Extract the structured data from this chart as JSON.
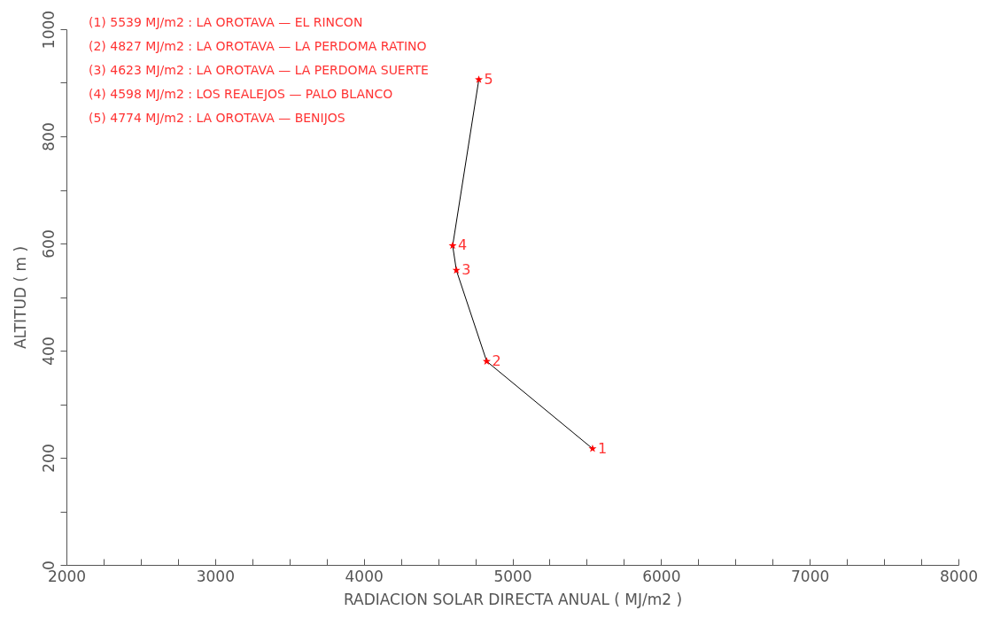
{
  "chart_data": {
    "type": "line",
    "xlabel": "RADIACION SOLAR DIRECTA ANUAL ( MJ/m2 )",
    "ylabel": "ALTITUD ( m )",
    "x": [
      5539,
      4827,
      4623,
      4598,
      4774
    ],
    "series": [
      {
        "color": "#000000",
        "marker": "none",
        "values": [
          217,
          380,
          550,
          596,
          906
        ]
      },
      {
        "type": "scatter",
        "color": "#ff0000",
        "marker": "star",
        "values": [
          217,
          380,
          550,
          596,
          906
        ]
      }
    ],
    "xlim": [
      2000,
      8000
    ],
    "xticks": [
      2000,
      {
        "value": 2250,
        "label": null
      },
      {
        "value": 2500,
        "label": null
      },
      {
        "value": 2750,
        "label": null
      },
      3000,
      {
        "value": 3250,
        "label": null
      },
      {
        "value": 3500,
        "label": null
      },
      {
        "value": 3750,
        "label": null
      },
      4000,
      {
        "value": 4250,
        "label": null
      },
      {
        "value": 4500,
        "label": null
      },
      {
        "value": 4750,
        "label": null
      },
      5000,
      {
        "value": 5250,
        "label": null
      },
      {
        "value": 5500,
        "label": null
      },
      {
        "value": 5750,
        "label": null
      },
      6000,
      {
        "value": 6250,
        "label": null
      },
      {
        "value": 6500,
        "label": null
      },
      {
        "value": 6750,
        "label": null
      },
      7000,
      {
        "value": 7250,
        "label": null
      },
      {
        "value": 7500,
        "label": null
      },
      {
        "value": 7750,
        "label": null
      },
      8000
    ],
    "ylim": [
      0,
      1000
    ],
    "yticks": [
      0,
      {
        "value": 100,
        "label": null
      },
      200,
      {
        "value": 300,
        "label": null
      },
      400,
      {
        "value": 500,
        "label": null
      },
      600,
      {
        "value": 700,
        "label": null
      },
      800,
      {
        "value": 900,
        "label": null
      },
      1000
    ],
    "annotations": [
      "(1) 5539 MJ/m2 : LA OROTAVA — EL RINCON",
      "(2) 4827 MJ/m2 : LA OROTAVA — LA PERDOMA RATINO",
      "(3) 4623 MJ/m2 : LA OROTAVA — LA PERDOMA SUERTE",
      "(4) 4598 MJ/m2 : LOS REALEJOS — PALO BLANCO",
      "(5) 4774 MJ/m2 : LA OROTAVA — BENIJOS",
      {
        "text": "1",
        "x": 5539,
        "y": 217
      },
      {
        "text": "2",
        "x": 4827,
        "y": 380
      },
      {
        "text": "3",
        "x": 4623,
        "y": 550
      },
      {
        "text": "4",
        "x": 4598,
        "y": 596
      },
      {
        "text": "5",
        "x": 4774,
        "y": 906
      }
    ]
  }
}
